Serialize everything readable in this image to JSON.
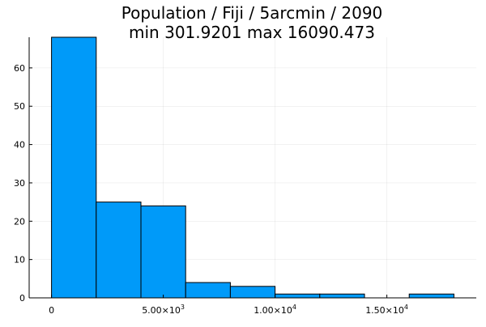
{
  "chart_data": {
    "type": "bar",
    "title_line1": "Population / Fiji / 5arcmin / 2090",
    "title_line2": "min 301.9201  max 16090.473",
    "bins": [
      {
        "x0": 0,
        "x1": 2000,
        "value": 68
      },
      {
        "x0": 2000,
        "x1": 4000,
        "value": 25
      },
      {
        "x0": 4000,
        "x1": 6000,
        "value": 24
      },
      {
        "x0": 6000,
        "x1": 8000,
        "value": 4
      },
      {
        "x0": 8000,
        "x1": 10000,
        "value": 3
      },
      {
        "x0": 10000,
        "x1": 12000,
        "value": 1
      },
      {
        "x0": 12000,
        "x1": 14000,
        "value": 1
      },
      {
        "x0": 14000,
        "x1": 16000,
        "value": 0
      },
      {
        "x0": 16000,
        "x1": 18000,
        "value": 1
      }
    ],
    "xlim": [
      -1000,
      19000
    ],
    "ylim": [
      0,
      68
    ],
    "x_ticks": [
      {
        "value": 0,
        "label": "0",
        "exp": ""
      },
      {
        "value": 5000,
        "label": "5.00×10",
        "exp": "3"
      },
      {
        "value": 10000,
        "label": "1.00×10",
        "exp": "4"
      },
      {
        "value": 15000,
        "label": "1.50×10",
        "exp": "4"
      }
    ],
    "y_ticks": [
      0,
      10,
      20,
      30,
      40,
      50,
      60
    ],
    "grid": true,
    "legend": "none",
    "bar_color": "#009af9",
    "bar_stroke": "#000000"
  }
}
